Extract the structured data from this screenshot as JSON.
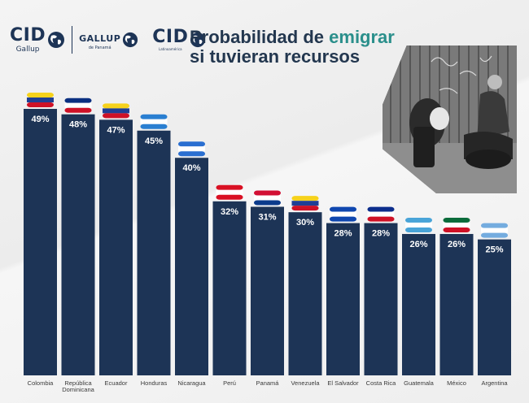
{
  "header": {
    "logo1": {
      "main": "CID",
      "sub": "Gallup"
    },
    "logo2": {
      "main": "GALLUP",
      "sub": "de Panamá"
    },
    "logo3": {
      "main": "CID",
      "sub": "Latinoamérica"
    }
  },
  "title": {
    "line1_start": "Probabilidad de ",
    "line1_accent": "emigrar",
    "line2": "si tuvieran recursos"
  },
  "chart_data": {
    "type": "bar",
    "title": "Probabilidad de emigrar si tuvieran recursos",
    "xlabel": "",
    "ylabel": "",
    "ylim": [
      0,
      49
    ],
    "grid": false,
    "categories": [
      "Colombia",
      "República Dominicana",
      "Ecuador",
      "Honduras",
      "Nicaragua",
      "Perú",
      "Panamá",
      "Venezuela",
      "El Salvador",
      "Costa Rica",
      "Guatemala",
      "México",
      "Argentina"
    ],
    "values": [
      49,
      48,
      47,
      45,
      40,
      32,
      31,
      30,
      28,
      28,
      26,
      26,
      25
    ],
    "data_labels": [
      "49%",
      "48%",
      "47%",
      "45%",
      "40%",
      "32%",
      "31%",
      "30%",
      "28%",
      "28%",
      "26%",
      "26%",
      "25%"
    ],
    "bar_color": "#1d3456"
  },
  "colors": {
    "bar": "#1d3456",
    "accent": "#2a8f8b",
    "title": "#23374f"
  },
  "icons": [
    "globe-icon",
    "flag-map-icon",
    "photo-migrants"
  ]
}
